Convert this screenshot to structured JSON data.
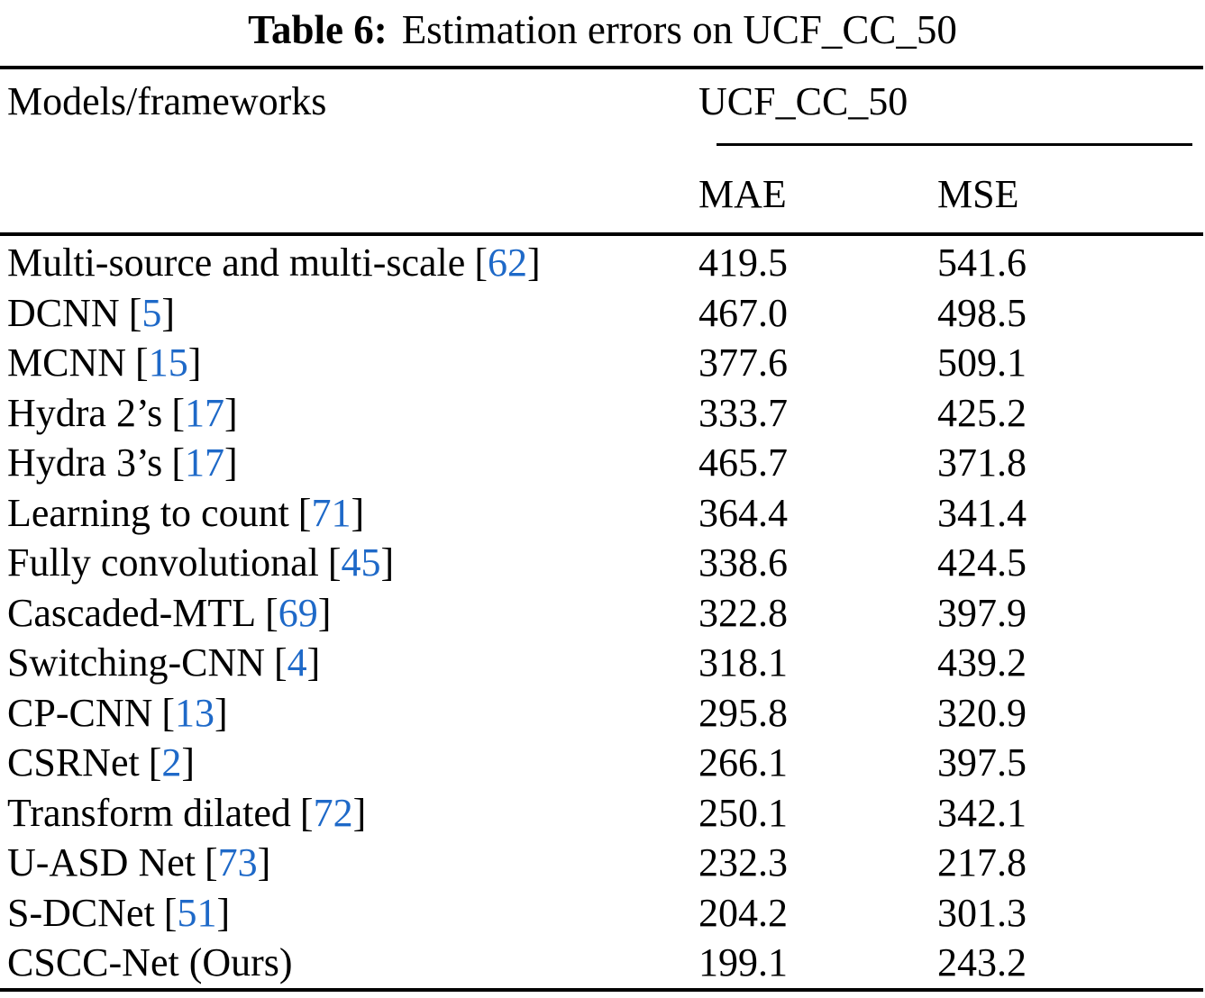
{
  "title": {
    "label": "Table 6:",
    "text": "Estimation errors on UCF_CC_50"
  },
  "table": {
    "model_header": "Models/frameworks",
    "group_header": "UCF_CC_50",
    "subheaders": {
      "mae": "MAE",
      "mse": "MSE"
    },
    "citation_open": "[",
    "citation_close": "]",
    "rows": [
      {
        "model": "Multi-source and multi-scale",
        "cite": "62",
        "mae": "419.5",
        "mse": "541.6"
      },
      {
        "model": "DCNN",
        "cite": "5",
        "mae": "467.0",
        "mse": "498.5"
      },
      {
        "model": "MCNN",
        "cite": "15",
        "mae": "377.6",
        "mse": "509.1"
      },
      {
        "model": "Hydra 2’s",
        "cite": "17",
        "mae": "333.7",
        "mse": "425.2"
      },
      {
        "model": "Hydra 3’s",
        "cite": "17",
        "mae": "465.7",
        "mse": "371.8"
      },
      {
        "model": "Learning to count",
        "cite": "71",
        "mae": "364.4",
        "mse": "341.4"
      },
      {
        "model": "Fully convolutional",
        "cite": "45",
        "mae": "338.6",
        "mse": "424.5"
      },
      {
        "model": "Cascaded-MTL",
        "cite": "69",
        "mae": "322.8",
        "mse": "397.9"
      },
      {
        "model": "Switching-CNN",
        "cite": "4",
        "mae": "318.1",
        "mse": "439.2"
      },
      {
        "model": "CP-CNN",
        "cite": "13",
        "mae": "295.8",
        "mse": "320.9"
      },
      {
        "model": "CSRNet",
        "cite": "2",
        "mae": "266.1",
        "mse": "397.5"
      },
      {
        "model": "Transform dilated",
        "cite": "72",
        "mae": "250.1",
        "mse": "342.1"
      },
      {
        "model": "U-ASD Net",
        "cite": "73",
        "mae": "232.3",
        "mse": "217.8"
      },
      {
        "model": "S-DCNet",
        "cite": "51",
        "mae": "204.2",
        "mse": "301.3"
      },
      {
        "model": "CSCC-Net (Ours)",
        "cite": null,
        "mae": "199.1",
        "mse": "243.2"
      }
    ]
  },
  "colors": {
    "citation_blue": "#1E69C8"
  }
}
